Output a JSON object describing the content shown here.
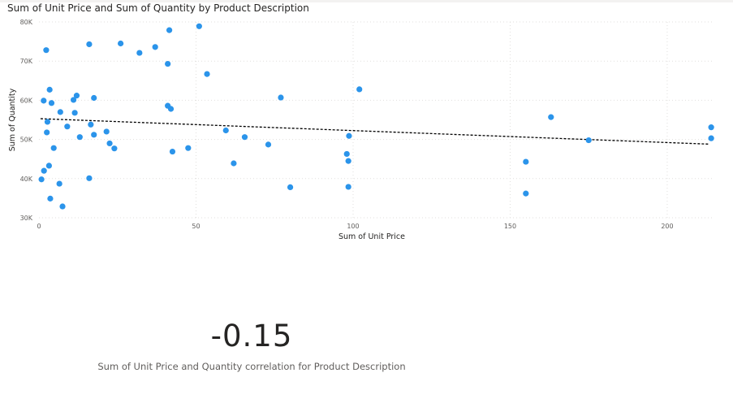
{
  "visual": {
    "title": "Sum of Unit Price and Sum of Quantity by Product Description"
  },
  "chart_data": {
    "type": "scatter",
    "title": "Sum of Unit Price and Sum of Quantity by Product Description",
    "xlabel": "Sum of Unit Price",
    "ylabel": "Sum of Quantity",
    "xlim": [
      0,
      215
    ],
    "ylim": [
      30000,
      80000
    ],
    "xticks": [
      0,
      50,
      100,
      150,
      200
    ],
    "xtick_labels": [
      "0",
      "50",
      "100",
      "150",
      "200"
    ],
    "yticks": [
      30000,
      40000,
      50000,
      60000,
      70000,
      80000
    ],
    "ytick_labels": [
      "30K",
      "40K",
      "50K",
      "60K",
      "70K",
      "80K"
    ],
    "grid": true,
    "point_color": "#2b94ea",
    "trendline_color": "#000000",
    "trendline": {
      "x": [
        0.5,
        213.5
      ],
      "y": [
        55300,
        48800
      ]
    },
    "points": [
      {
        "x": 0.8,
        "y": 39800
      },
      {
        "x": 1.5,
        "y": 59900
      },
      {
        "x": 1.6,
        "y": 42000
      },
      {
        "x": 2.3,
        "y": 72800
      },
      {
        "x": 2.5,
        "y": 51800
      },
      {
        "x": 2.7,
        "y": 54500
      },
      {
        "x": 3.2,
        "y": 43300
      },
      {
        "x": 3.4,
        "y": 62700
      },
      {
        "x": 3.6,
        "y": 34900
      },
      {
        "x": 4.0,
        "y": 59300
      },
      {
        "x": 4.7,
        "y": 47800
      },
      {
        "x": 6.5,
        "y": 38700
      },
      {
        "x": 6.8,
        "y": 57000
      },
      {
        "x": 7.5,
        "y": 32900
      },
      {
        "x": 9.0,
        "y": 53300
      },
      {
        "x": 11.0,
        "y": 60100
      },
      {
        "x": 11.4,
        "y": 56800
      },
      {
        "x": 12.0,
        "y": 61200
      },
      {
        "x": 13.0,
        "y": 50600
      },
      {
        "x": 16.0,
        "y": 74300
      },
      {
        "x": 16.0,
        "y": 40100
      },
      {
        "x": 16.5,
        "y": 53800
      },
      {
        "x": 17.5,
        "y": 51200
      },
      {
        "x": 17.5,
        "y": 60600
      },
      {
        "x": 21.5,
        "y": 52000
      },
      {
        "x": 22.5,
        "y": 49000
      },
      {
        "x": 24.0,
        "y": 47700
      },
      {
        "x": 26.0,
        "y": 74500
      },
      {
        "x": 32.0,
        "y": 72100
      },
      {
        "x": 37.0,
        "y": 73600
      },
      {
        "x": 41.0,
        "y": 58600
      },
      {
        "x": 41.0,
        "y": 69300
      },
      {
        "x": 41.5,
        "y": 77900
      },
      {
        "x": 42.0,
        "y": 57800
      },
      {
        "x": 42.5,
        "y": 46900
      },
      {
        "x": 47.5,
        "y": 47800
      },
      {
        "x": 51.0,
        "y": 78900
      },
      {
        "x": 53.5,
        "y": 66700
      },
      {
        "x": 59.5,
        "y": 52300
      },
      {
        "x": 62.0,
        "y": 43900
      },
      {
        "x": 65.5,
        "y": 50600
      },
      {
        "x": 73.0,
        "y": 48700
      },
      {
        "x": 77.0,
        "y": 60700
      },
      {
        "x": 80.0,
        "y": 37800
      },
      {
        "x": 98.0,
        "y": 46300
      },
      {
        "x": 98.5,
        "y": 44500
      },
      {
        "x": 98.5,
        "y": 37900
      },
      {
        "x": 98.7,
        "y": 50900
      },
      {
        "x": 102.0,
        "y": 62800
      },
      {
        "x": 155.0,
        "y": 44300
      },
      {
        "x": 155.0,
        "y": 36200
      },
      {
        "x": 163.0,
        "y": 55700
      },
      {
        "x": 175.0,
        "y": 49800
      },
      {
        "x": 214.0,
        "y": 53100
      },
      {
        "x": 214.0,
        "y": 50300
      }
    ]
  },
  "card": {
    "value": "-0.15",
    "label": "Sum of Unit Price and Quantity correlation for Product Description"
  }
}
